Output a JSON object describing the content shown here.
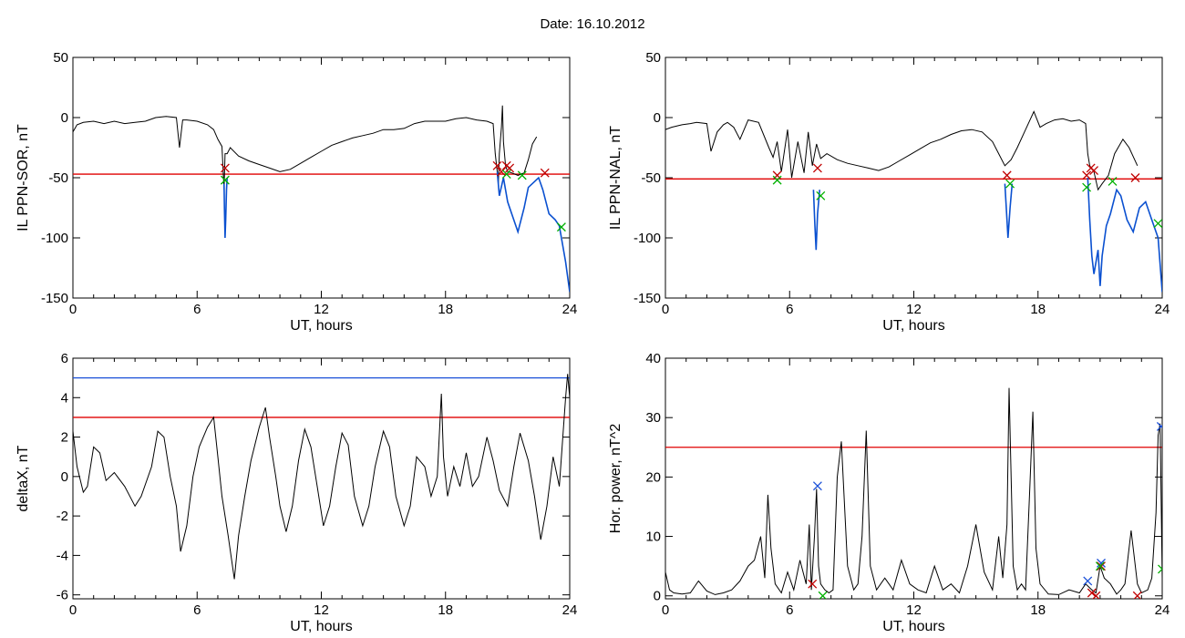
{
  "page": {
    "title": "Date:  16.10.2012"
  },
  "chart_data": [
    {
      "type": "line",
      "xlabel": "UT, hours",
      "ylabel": "IL PPN-SOR, nT",
      "xlim": [
        0,
        24
      ],
      "ylim": [
        -150,
        50
      ],
      "xticks": [
        0,
        6,
        12,
        18,
        24
      ],
      "yticks": [
        -150,
        -100,
        -50,
        0,
        50
      ],
      "thresholds": [
        {
          "y": -47,
          "color": "#e00000"
        }
      ],
      "series": [
        {
          "color": "#000000",
          "x": [
            0,
            0.2,
            0.5,
            1,
            1.5,
            2,
            2.5,
            3,
            3.5,
            4,
            4.5,
            5,
            5.15,
            5.3,
            5.5,
            6,
            6.5,
            6.8,
            7,
            7.2,
            7.3,
            7.35,
            7.45,
            7.6,
            8,
            8.5,
            9,
            9.5,
            10,
            10.5,
            11,
            11.5,
            12,
            12.5,
            13,
            13.5,
            14,
            14.5,
            15,
            15.5,
            16,
            16.5,
            17,
            17.5,
            18,
            18.5,
            19,
            19.5,
            20,
            20.3,
            20.4,
            20.5,
            20.55,
            20.6,
            20.7,
            20.75,
            20.8,
            20.9,
            21,
            21.2,
            21.5,
            21.8,
            22,
            22.2,
            22.4
          ],
          "y": [
            -12,
            -6,
            -4,
            -3,
            -5,
            -3,
            -5,
            -4,
            -3,
            0,
            1,
            0,
            -25,
            -2,
            -2,
            -3,
            -6,
            -10,
            -18,
            -24,
            -60,
            -30,
            -30,
            -25,
            -32,
            -36,
            -39,
            -42,
            -45,
            -43,
            -38,
            -33,
            -28,
            -23,
            -20,
            -17,
            -15,
            -13,
            -10,
            -10,
            -9,
            -5,
            -3,
            -3,
            -3,
            -1,
            0,
            -2,
            -3,
            -5,
            -30,
            -45,
            -55,
            -30,
            -8,
            10,
            -20,
            -40,
            -45,
            -46,
            -48,
            -46,
            -35,
            -22,
            -16
          ]
        },
        {
          "color": "#0a50d0",
          "x": [
            7.3,
            7.32,
            7.35,
            7.38,
            7.42,
            7.45
          ],
          "y": [
            -55,
            -75,
            -100,
            -85,
            -60,
            -50
          ]
        },
        {
          "color": "#0a50d0",
          "x": [
            20.5,
            20.6,
            20.8,
            21,
            21.2,
            21.5,
            21.8,
            22,
            22.5,
            22.7,
            23,
            23.3,
            23.5,
            23.8,
            24
          ],
          "y": [
            -45,
            -65,
            -50,
            -70,
            -80,
            -95,
            -75,
            -58,
            -50,
            -60,
            -80,
            -85,
            -90,
            -120,
            -145
          ]
        }
      ],
      "markers": {
        "red": {
          "color": "#c00000",
          "x": [
            7.35,
            20.5,
            20.7,
            20.95,
            21.1,
            22.8
          ],
          "y": [
            -42,
            -40,
            -45,
            -40,
            -42,
            -46
          ]
        },
        "green": {
          "color": "#00b000",
          "x": [
            7.35,
            20.95,
            21.7,
            23.6
          ],
          "y": [
            -52,
            -47,
            -48,
            -91
          ]
        }
      }
    },
    {
      "type": "line",
      "xlabel": "UT, hours",
      "ylabel": "IL PPN-NAL, nT",
      "xlim": [
        0,
        24
      ],
      "ylim": [
        -150,
        50
      ],
      "xticks": [
        0,
        6,
        12,
        18,
        24
      ],
      "yticks": [
        -150,
        -100,
        -50,
        0,
        50
      ],
      "thresholds": [
        {
          "y": -51,
          "color": "#e00000"
        }
      ],
      "series": [
        {
          "color": "#000000",
          "x": [
            0,
            0.3,
            0.8,
            1.2,
            1.5,
            2,
            2.2,
            2.5,
            2.8,
            3,
            3.3,
            3.6,
            4,
            4.5,
            5,
            5.2,
            5.4,
            5.6,
            5.9,
            6.1,
            6.4,
            6.7,
            6.9,
            7.1,
            7.3,
            7.5,
            7.8,
            8.3,
            8.8,
            9.3,
            9.8,
            10.3,
            10.8,
            11.3,
            11.8,
            12.3,
            12.8,
            13.3,
            13.8,
            14.3,
            14.8,
            15.3,
            15.8,
            16.1,
            16.4,
            16.7,
            17,
            17.4,
            17.8,
            18.1,
            18.4,
            18.8,
            19.2,
            19.6,
            20,
            20.3,
            20.4,
            20.5,
            20.7,
            20.9,
            21.1,
            21.4,
            21.7,
            22.1,
            22.4,
            22.8
          ],
          "y": [
            -10,
            -8,
            -6,
            -5,
            -4,
            -5,
            -28,
            -12,
            -6,
            -4,
            -8,
            -18,
            -2,
            -4,
            -25,
            -33,
            -20,
            -45,
            -10,
            -50,
            -20,
            -46,
            -12,
            -40,
            -22,
            -34,
            -30,
            -35,
            -38,
            -40,
            -42,
            -44,
            -41,
            -36,
            -31,
            -26,
            -21,
            -18,
            -14,
            -11,
            -10,
            -12,
            -20,
            -30,
            -40,
            -35,
            -25,
            -10,
            5,
            -8,
            -5,
            -2,
            -1,
            -3,
            -2,
            -5,
            -30,
            -40,
            -45,
            -60,
            -55,
            -48,
            -30,
            -18,
            -25,
            -40
          ]
        },
        {
          "color": "#0a50d0",
          "x": [
            7.15,
            7.22,
            7.28,
            7.35,
            7.45
          ],
          "y": [
            -60,
            -90,
            -110,
            -80,
            -60
          ]
        },
        {
          "color": "#0a50d0",
          "x": [
            16.4,
            16.5,
            16.55,
            16.65,
            16.75
          ],
          "y": [
            -55,
            -85,
            -100,
            -75,
            -55
          ]
        },
        {
          "color": "#0a50d0",
          "x": [
            20.4,
            20.5,
            20.6,
            20.7,
            20.9,
            21,
            21.1,
            21.3,
            21.5,
            21.8,
            22,
            22.3,
            22.6,
            22.9,
            23.2,
            23.5,
            23.8,
            24
          ],
          "y": [
            -50,
            -85,
            -115,
            -130,
            -110,
            -140,
            -115,
            -90,
            -80,
            -60,
            -65,
            -85,
            -95,
            -75,
            -70,
            -85,
            -100,
            -145
          ]
        }
      ],
      "markers": {
        "red": {
          "color": "#c00000",
          "x": [
            5.4,
            7.35,
            16.5,
            20.35,
            20.55,
            20.7,
            22.7
          ],
          "y": [
            -48,
            -42,
            -48,
            -48,
            -42,
            -44,
            -50
          ]
        },
        "green": {
          "color": "#00b000",
          "x": [
            5.4,
            7.5,
            16.65,
            20.35,
            21.6,
            23.8
          ],
          "y": [
            -52,
            -65,
            -55,
            -58,
            -53,
            -88
          ]
        }
      }
    },
    {
      "type": "line",
      "xlabel": "UT, hours",
      "ylabel": "deltaX, nT",
      "xlim": [
        0,
        24
      ],
      "ylim": [
        -6.2,
        6
      ],
      "xticks": [
        0,
        6,
        12,
        18,
        24
      ],
      "yticks": [
        -6,
        -4,
        -2,
        0,
        2,
        4,
        6
      ],
      "thresholds": [
        {
          "y": 5,
          "color": "#1a50d8"
        },
        {
          "y": 3,
          "color": "#e00000"
        }
      ],
      "series": [
        {
          "color": "#000000",
          "x": [
            0,
            0.2,
            0.5,
            0.7,
            1,
            1.3,
            1.6,
            2,
            2.5,
            3,
            3.3,
            3.8,
            4.1,
            4.4,
            4.7,
            5,
            5.2,
            5.5,
            5.8,
            6.1,
            6.5,
            6.8,
            7,
            7.2,
            7.5,
            7.8,
            8,
            8.3,
            8.6,
            9,
            9.3,
            9.5,
            9.8,
            10,
            10.3,
            10.6,
            10.9,
            11.2,
            11.5,
            11.8,
            12.1,
            12.4,
            12.7,
            13,
            13.3,
            13.6,
            14,
            14.3,
            14.6,
            15,
            15.3,
            15.6,
            16,
            16.3,
            16.6,
            17,
            17.3,
            17.6,
            17.8,
            17.9,
            18.1,
            18.4,
            18.7,
            19,
            19.3,
            19.6,
            20,
            20.3,
            20.6,
            21,
            21.3,
            21.6,
            22,
            22.3,
            22.6,
            22.9,
            23.2,
            23.5,
            23.7,
            23.8,
            23.9,
            24
          ],
          "y": [
            2.3,
            0.5,
            -0.8,
            -0.5,
            1.5,
            1.2,
            -0.2,
            0.2,
            -0.5,
            -1.5,
            -1,
            0.5,
            2.3,
            2,
            0,
            -1.5,
            -3.8,
            -2.5,
            0,
            1.5,
            2.5,
            3,
            1,
            -1,
            -3,
            -5.2,
            -3,
            -1,
            0.8,
            2.5,
            3.5,
            2,
            0,
            -1.5,
            -2.8,
            -1.5,
            0.8,
            2.4,
            1.5,
            -0.5,
            -2.5,
            -1.5,
            0.5,
            2.2,
            1.6,
            -1,
            -2.5,
            -1.5,
            0.5,
            2.3,
            1.5,
            -1,
            -2.5,
            -1.5,
            1,
            0.5,
            -1,
            0,
            4.2,
            1,
            -1,
            0.5,
            -0.5,
            1.2,
            -0.5,
            0,
            2,
            0.8,
            -0.7,
            -1.5,
            0.5,
            2.2,
            0.8,
            -1,
            -3.2,
            -1.5,
            1,
            -0.5,
            2.5,
            4,
            5.2,
            4
          ]
        }
      ],
      "markers": null
    },
    {
      "type": "line",
      "xlabel": "UT, hours",
      "ylabel": "Hor. power, nT^2",
      "xlim": [
        0,
        24
      ],
      "ylim": [
        -0.5,
        40
      ],
      "xticks": [
        0,
        6,
        12,
        18,
        24
      ],
      "yticks": [
        0,
        10,
        20,
        30,
        40
      ],
      "thresholds": [
        {
          "y": 25,
          "color": "#e00000"
        }
      ],
      "series": [
        {
          "color": "#000000",
          "x": [
            0,
            0.2,
            0.4,
            0.8,
            1.2,
            1.6,
            2,
            2.4,
            2.8,
            3.2,
            3.6,
            4,
            4.3,
            4.6,
            4.8,
            4.95,
            5.1,
            5.3,
            5.6,
            5.9,
            6.2,
            6.5,
            6.8,
            6.95,
            7.05,
            7.2,
            7.3,
            7.4,
            7.5,
            7.7,
            7.9,
            8.1,
            8.3,
            8.5,
            8.8,
            9.1,
            9.3,
            9.5,
            9.7,
            9.9,
            10.2,
            10.6,
            11,
            11.4,
            11.8,
            12.2,
            12.6,
            13,
            13.4,
            13.8,
            14.2,
            14.6,
            15,
            15.4,
            15.8,
            16.1,
            16.3,
            16.5,
            16.6,
            16.8,
            17,
            17.2,
            17.4,
            17.6,
            17.75,
            17.9,
            18.1,
            18.5,
            19,
            19.5,
            20,
            20.3,
            20.6,
            20.8,
            21,
            21.2,
            21.5,
            21.8,
            22,
            22.2,
            22.5,
            22.8,
            23,
            23.3,
            23.5,
            23.7,
            23.8,
            23.9,
            24
          ],
          "y": [
            4,
            1,
            0.5,
            0.3,
            0.5,
            2.5,
            0.8,
            0.2,
            0.5,
            1,
            2.5,
            5,
            6,
            10,
            3,
            17,
            8,
            2,
            0.5,
            4,
            1,
            6,
            2,
            12,
            1,
            10,
            18,
            5,
            2,
            1,
            0.5,
            1,
            20,
            26,
            5,
            1,
            2,
            10,
            27.8,
            5,
            1,
            3,
            1,
            6,
            2,
            1,
            0.5,
            5,
            1,
            2,
            0.5,
            5,
            12,
            4,
            1,
            10,
            3,
            12,
            35,
            5,
            1,
            2,
            1,
            18,
            31,
            8,
            2,
            0.3,
            0.2,
            1,
            0.5,
            2,
            1,
            0.5,
            5,
            3,
            2,
            0.3,
            1,
            2,
            11,
            2,
            0.5,
            1,
            3,
            14,
            27,
            29,
            3
          ]
        }
      ],
      "markers": {
        "blue": {
          "color": "#1a50d8",
          "x": [
            7.35,
            20.4,
            21.05,
            23.95
          ],
          "y": [
            18.5,
            2.5,
            5.5,
            28.5
          ]
        },
        "red": {
          "color": "#c00000",
          "x": [
            7.1,
            20.6,
            20.8,
            21.05,
            22.8
          ],
          "y": [
            2,
            0.5,
            0,
            5,
            0
          ]
        },
        "green": {
          "color": "#00b000",
          "x": [
            7.6,
            21,
            24
          ],
          "y": [
            0,
            5,
            4.5
          ]
        }
      }
    }
  ]
}
